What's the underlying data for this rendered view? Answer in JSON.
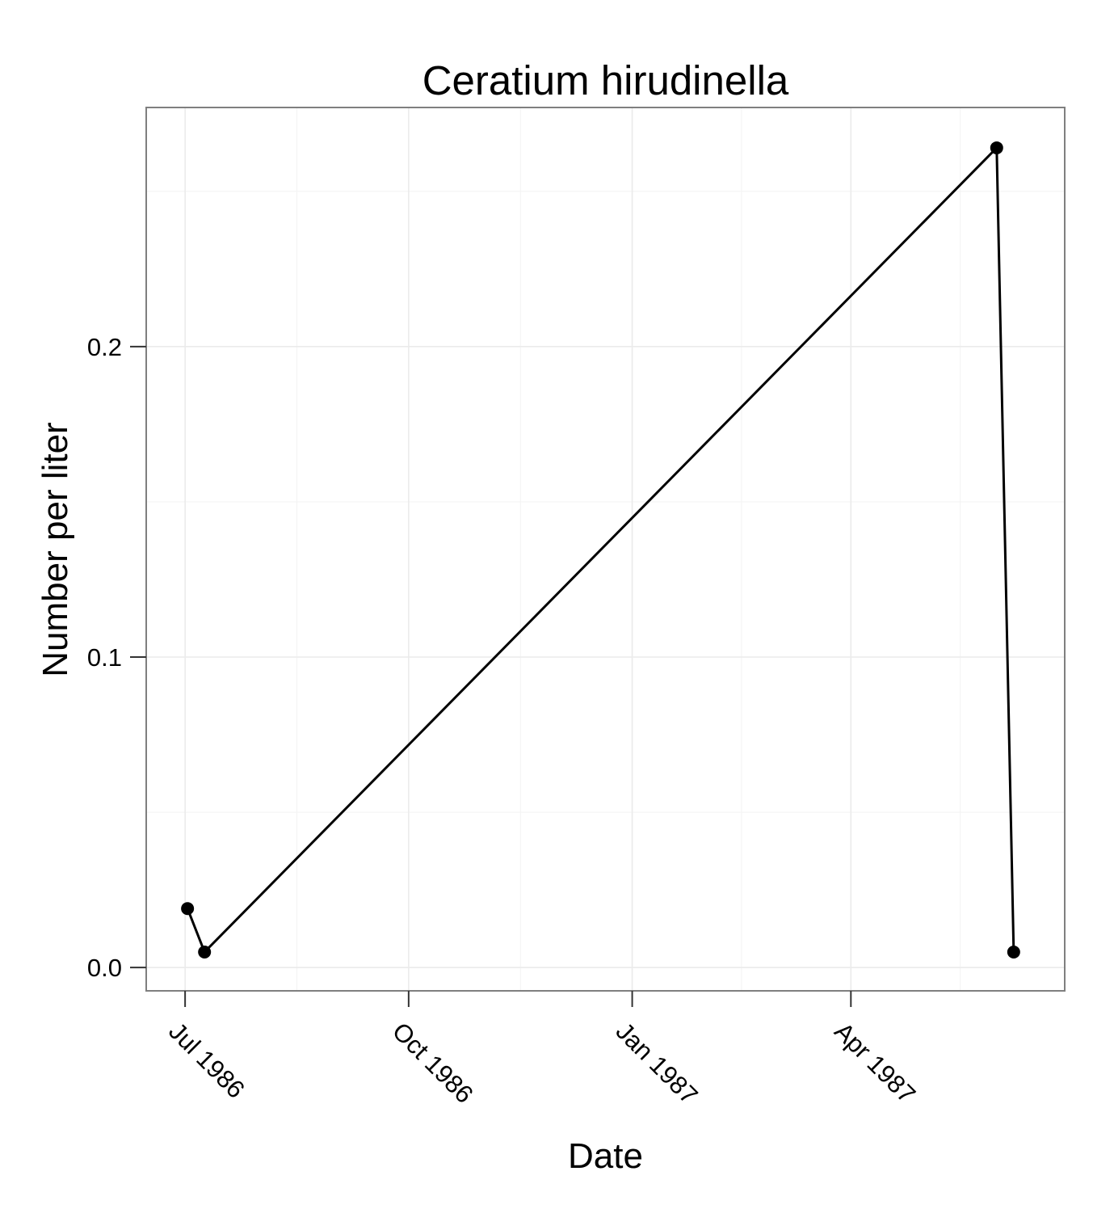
{
  "chart_data": {
    "type": "line",
    "title": "Ceratium hirudinella",
    "xlabel": "Date",
    "ylabel": "Number per liter",
    "x_ticks": [
      {
        "label": "Jul 1986",
        "date": "1986-07-01"
      },
      {
        "label": "Oct 1986",
        "date": "1986-10-01"
      },
      {
        "label": "Jan 1987",
        "date": "1987-01-01"
      },
      {
        "label": "Apr 1987",
        "date": "1987-04-01"
      }
    ],
    "y_ticks": [
      {
        "label": "0.0",
        "value": 0.0
      },
      {
        "label": "0.1",
        "value": 0.1
      },
      {
        "label": "0.2",
        "value": 0.2
      }
    ],
    "xlim": [
      "1986-06-15",
      "1987-06-28"
    ],
    "ylim": [
      -0.0075,
      0.277
    ],
    "grid": true,
    "series": [
      {
        "x": [
          "1986-07-02",
          "1986-07-09",
          "1987-05-31",
          "1987-06-07"
        ],
        "y": [
          0.019,
          0.005,
          0.264,
          0.005
        ]
      }
    ]
  }
}
